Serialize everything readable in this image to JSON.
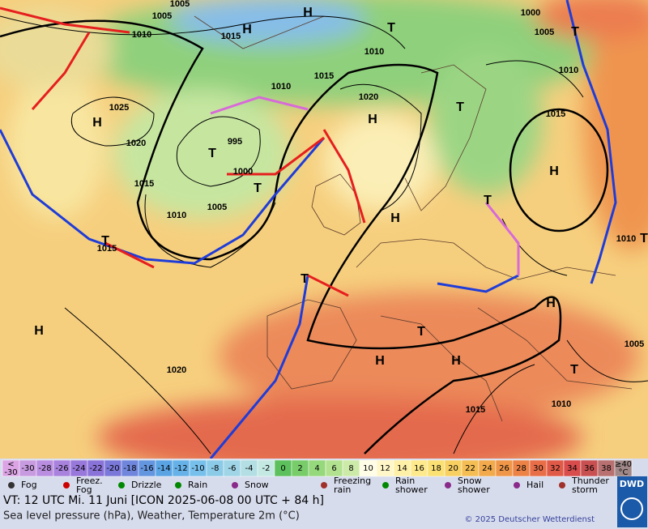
{
  "map_labels": [
    "1005",
    "1005",
    "1010",
    "1015",
    "H",
    "H",
    "T",
    "1010",
    "1015",
    "1010",
    "1020",
    "1025",
    "H",
    "1020",
    "T",
    "995",
    "1000",
    "1015",
    "H",
    "1010",
    "1005",
    "T",
    "H",
    "1000",
    "1005",
    "T",
    "1010",
    "1015",
    "T",
    "H",
    "T",
    "1010",
    "T",
    "T",
    "1015",
    "T",
    "H",
    "H",
    "1005",
    "T",
    "H",
    "H",
    "1020",
    "T",
    "1010",
    "1015"
  ],
  "scale": [
    {
      "top": "<",
      "label": "-30",
      "color": "#dca4e4"
    },
    {
      "label": "-30",
      "color": "#c89be0"
    },
    {
      "label": "-28",
      "color": "#b98de0"
    },
    {
      "label": "-26",
      "color": "#a882dd"
    },
    {
      "label": "-24",
      "color": "#9878da"
    },
    {
      "label": "-22",
      "color": "#8a73d8"
    },
    {
      "label": "-20",
      "color": "#7a78d8"
    },
    {
      "label": "-18",
      "color": "#6f86dc"
    },
    {
      "label": "-16",
      "color": "#6496e0"
    },
    {
      "label": "-14",
      "color": "#5aa4e4"
    },
    {
      "label": "-12",
      "color": "#66b2e8"
    },
    {
      "label": "-10",
      "color": "#78c0ec"
    },
    {
      "label": "-8",
      "color": "#8ccbe8"
    },
    {
      "label": "-6",
      "color": "#9fd5e6"
    },
    {
      "label": "-4",
      "color": "#b2dee4"
    },
    {
      "label": "-2",
      "color": "#c4e8e2"
    },
    {
      "label": "0",
      "color": "#5cc05c"
    },
    {
      "label": "2",
      "color": "#78cc6a"
    },
    {
      "label": "4",
      "color": "#96d87c"
    },
    {
      "label": "6",
      "color": "#b2e290"
    },
    {
      "label": "8",
      "color": "#cdeba8"
    },
    {
      "label": "10",
      "color": "#fffde6"
    },
    {
      "label": "12",
      "color": "#fff7c8"
    },
    {
      "label": "14",
      "color": "#fff0a8"
    },
    {
      "label": "16",
      "color": "#feea8c"
    },
    {
      "label": "18",
      "color": "#fbe074"
    },
    {
      "label": "20",
      "color": "#f8d062"
    },
    {
      "label": "22",
      "color": "#f5be55"
    },
    {
      "label": "24",
      "color": "#f2aa4c"
    },
    {
      "label": "26",
      "color": "#ef9648"
    },
    {
      "label": "28",
      "color": "#ec8246"
    },
    {
      "label": "30",
      "color": "#e86e48"
    },
    {
      "label": "32",
      "color": "#e05a48"
    },
    {
      "label": "34",
      "color": "#d84c4c"
    },
    {
      "label": "36",
      "color": "#c85050"
    },
    {
      "label": "38",
      "color": "#b87070"
    },
    {
      "top": "≥40",
      "label": "°C",
      "color": "#a08888"
    }
  ],
  "legend": [
    "Fog",
    "Freez. Fog",
    "Drizzle",
    "Rain",
    "Snow",
    "Freezing rain",
    "Rain shower",
    "Snow shower",
    "Hail",
    "Thunder storm"
  ],
  "footer": {
    "valid_time": "VT: 12 UTC Mi.   11 Juni [ICON 2025-06-08  00 UTC + 84 h]",
    "description": "Sea level pressure (hPa), Weather, Temperature 2m (°C)",
    "copyright": "© 2025 Deutscher Wetterdienst",
    "logo": "DWD"
  }
}
